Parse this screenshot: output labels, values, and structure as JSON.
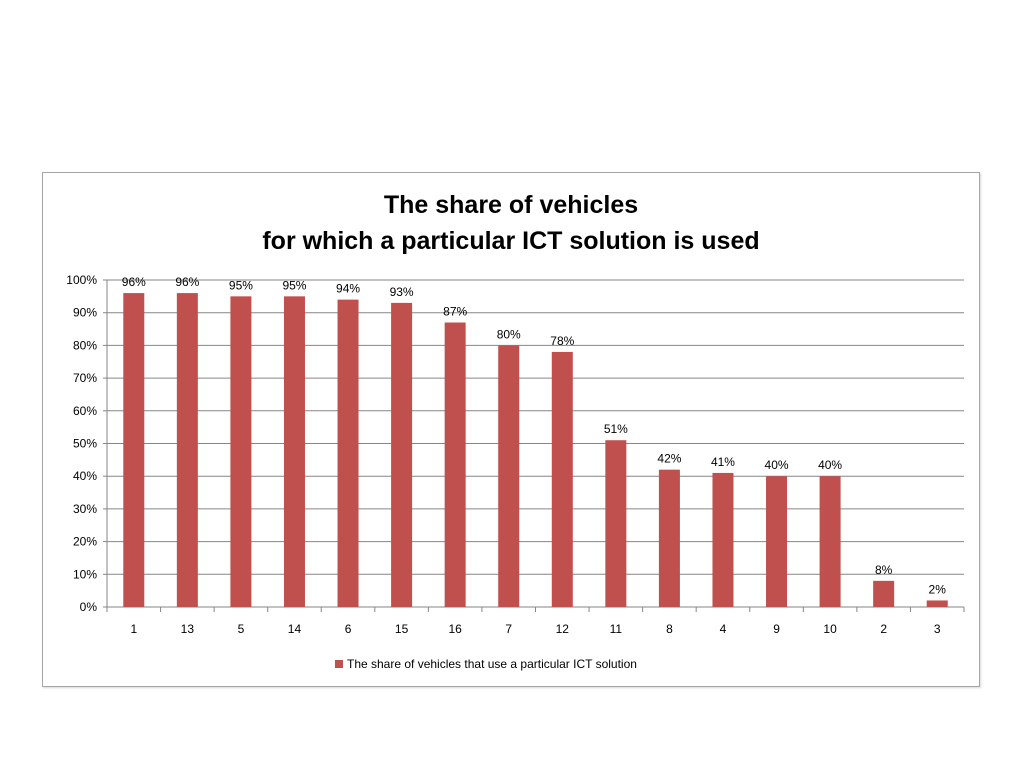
{
  "chart_data": {
    "type": "bar",
    "title_lines": [
      "The share of vehicles",
      "for which a particular ICT solution is used"
    ],
    "categories": [
      "1",
      "13",
      "5",
      "14",
      "6",
      "15",
      "16",
      "7",
      "12",
      "11",
      "8",
      "4",
      "9",
      "10",
      "2",
      "3"
    ],
    "series": [
      {
        "name": "The share of vehicles that use a particular ICT solution",
        "values": [
          96,
          96,
          95,
          95,
          94,
          93,
          87,
          80,
          78,
          51,
          42,
          41,
          40,
          40,
          8,
          2
        ],
        "data_labels": [
          "96%",
          "96%",
          "95%",
          "95%",
          "94%",
          "93%",
          "87%",
          "80%",
          "78%",
          "51%",
          "42%",
          "41%",
          "40%",
          "40%",
          "8%",
          "2%"
        ],
        "color": "#c0504d"
      }
    ],
    "yticks": [
      0,
      10,
      20,
      30,
      40,
      50,
      60,
      70,
      80,
      90,
      100
    ],
    "ytick_labels": [
      "0%",
      "10%",
      "20%",
      "30%",
      "40%",
      "50%",
      "60%",
      "70%",
      "80%",
      "90%",
      "100%"
    ],
    "ylim": [
      0,
      100
    ],
    "grid": true,
    "legend_position": "bottom"
  }
}
